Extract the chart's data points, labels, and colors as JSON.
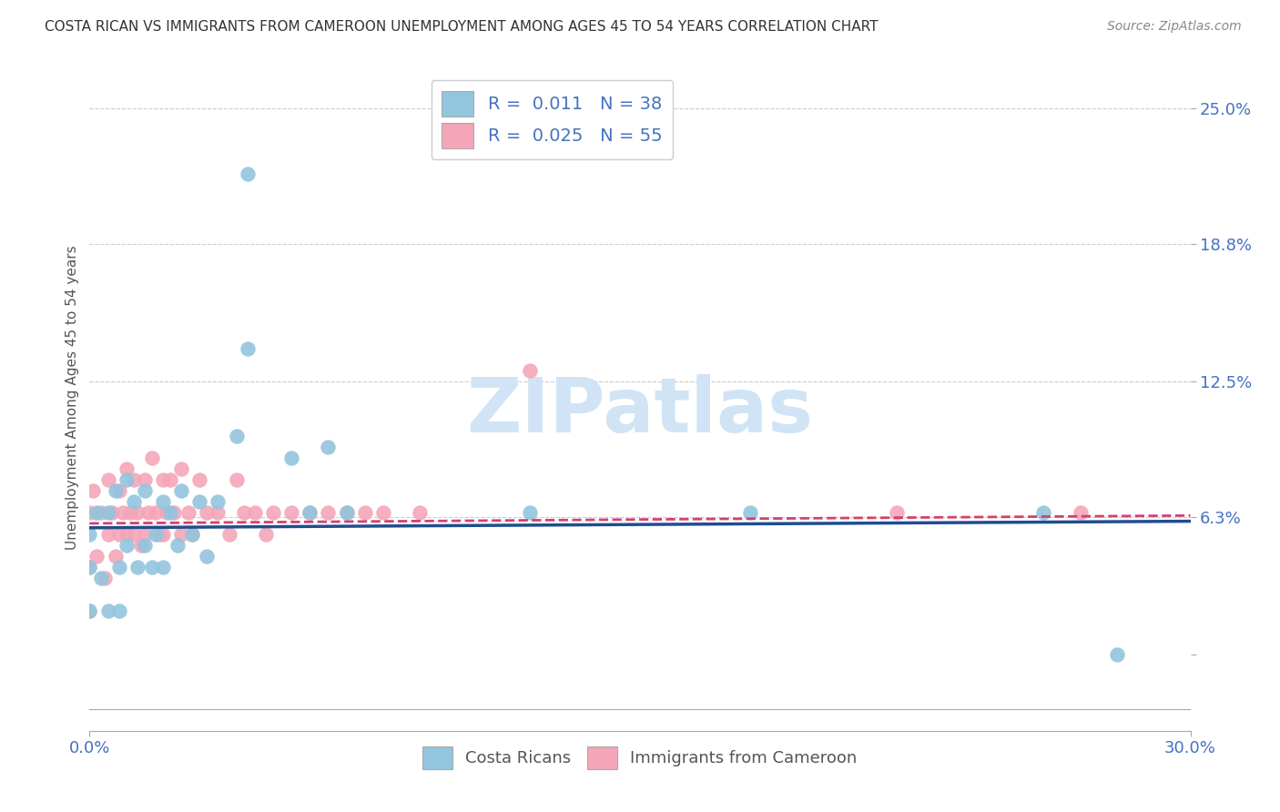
{
  "title": "COSTA RICAN VS IMMIGRANTS FROM CAMEROON UNEMPLOYMENT AMONG AGES 45 TO 54 YEARS CORRELATION CHART",
  "source": "Source: ZipAtlas.com",
  "ylabel": "Unemployment Among Ages 45 to 54 years",
  "xlim": [
    0.0,
    0.3
  ],
  "ylim": [
    -0.035,
    0.27
  ],
  "ytick_vals": [
    0.0,
    0.063,
    0.125,
    0.188,
    0.25
  ],
  "ytick_labels": [
    "",
    "6.3%",
    "12.5%",
    "18.8%",
    "25.0%"
  ],
  "xtick_vals": [
    0.0,
    0.3
  ],
  "xtick_labels": [
    "0.0%",
    "30.0%"
  ],
  "legend_line1": "R =  0.011   N = 38",
  "legend_line2": "R =  0.025   N = 55",
  "blue_color": "#92c5de",
  "pink_color": "#f4a6b8",
  "line_blue_color": "#1f4e8c",
  "line_pink_color": "#d44070",
  "watermark_color": "#d0e4f5",
  "axis_label_color": "#4472c4",
  "title_color": "#333333",
  "source_color": "#888888",
  "grid_color": "#cccccc",
  "background_color": "#ffffff",
  "cr_x": [
    0.0,
    0.0,
    0.0,
    0.002,
    0.003,
    0.005,
    0.005,
    0.007,
    0.008,
    0.008,
    0.01,
    0.01,
    0.012,
    0.013,
    0.015,
    0.015,
    0.017,
    0.018,
    0.02,
    0.02,
    0.022,
    0.024,
    0.025,
    0.028,
    0.03,
    0.032,
    0.035,
    0.04,
    0.043,
    0.055,
    0.06,
    0.065,
    0.07,
    0.12,
    0.18,
    0.26,
    0.28,
    0.043
  ],
  "cr_y": [
    0.04,
    0.02,
    0.055,
    0.065,
    0.035,
    0.065,
    0.02,
    0.075,
    0.04,
    0.02,
    0.08,
    0.05,
    0.07,
    0.04,
    0.075,
    0.05,
    0.04,
    0.055,
    0.07,
    0.04,
    0.065,
    0.05,
    0.075,
    0.055,
    0.07,
    0.045,
    0.07,
    0.1,
    0.14,
    0.09,
    0.065,
    0.095,
    0.065,
    0.065,
    0.065,
    0.065,
    0.0,
    0.22
  ],
  "cam_x": [
    0.0,
    0.0,
    0.0,
    0.001,
    0.002,
    0.003,
    0.004,
    0.005,
    0.005,
    0.006,
    0.007,
    0.008,
    0.008,
    0.009,
    0.01,
    0.01,
    0.011,
    0.012,
    0.012,
    0.013,
    0.014,
    0.015,
    0.015,
    0.016,
    0.017,
    0.018,
    0.019,
    0.02,
    0.02,
    0.021,
    0.022,
    0.023,
    0.025,
    0.025,
    0.027,
    0.028,
    0.03,
    0.032,
    0.035,
    0.038,
    0.04,
    0.042,
    0.045,
    0.048,
    0.05,
    0.055,
    0.06,
    0.065,
    0.07,
    0.075,
    0.08,
    0.09,
    0.12,
    0.22,
    0.27
  ],
  "cam_y": [
    0.065,
    0.04,
    0.02,
    0.075,
    0.045,
    0.065,
    0.035,
    0.08,
    0.055,
    0.065,
    0.045,
    0.075,
    0.055,
    0.065,
    0.085,
    0.055,
    0.065,
    0.08,
    0.055,
    0.065,
    0.05,
    0.08,
    0.055,
    0.065,
    0.09,
    0.065,
    0.055,
    0.08,
    0.055,
    0.065,
    0.08,
    0.065,
    0.085,
    0.055,
    0.065,
    0.055,
    0.08,
    0.065,
    0.065,
    0.055,
    0.08,
    0.065,
    0.065,
    0.055,
    0.065,
    0.065,
    0.065,
    0.065,
    0.065,
    0.065,
    0.065,
    0.065,
    0.13,
    0.065,
    0.065
  ],
  "scatter_size": 140
}
